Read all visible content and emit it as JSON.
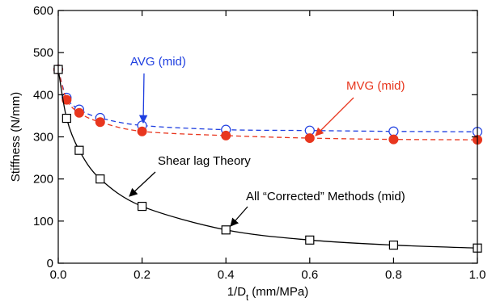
{
  "chart_data": {
    "type": "line",
    "xlabel": "1/D",
    "xlabel_sub": "t",
    "xlabel_unit": " (mm/MPa)",
    "ylabel": "Stiffness (N/mm)",
    "xlim": [
      0.0,
      1.0
    ],
    "ylim": [
      0,
      600
    ],
    "x_ticks": [
      0.0,
      0.2,
      0.4,
      0.6,
      0.8,
      1.0
    ],
    "x_tick_labels": [
      "0.0",
      "0.2",
      "0.4",
      "0.6",
      "0.8",
      "1.0"
    ],
    "y_ticks": [
      0,
      100,
      200,
      300,
      400,
      500,
      600
    ],
    "y_tick_labels": [
      "0",
      "100",
      "200",
      "300",
      "400",
      "500",
      "600"
    ],
    "grid": false,
    "series": [
      {
        "name": "AVG (mid)",
        "color": "#1f3fe0",
        "marker": "open-circle",
        "line": "dashed",
        "x": [
          0.0,
          0.02,
          0.05,
          0.1,
          0.2,
          0.4,
          0.6,
          0.8,
          1.0
        ],
        "y": [
          460,
          393,
          365,
          345,
          327,
          317,
          315,
          313,
          312
        ]
      },
      {
        "name": "MVG (mid)",
        "color": "#e8361e",
        "marker": "filled-circle",
        "line": "dashed",
        "x": [
          0.0,
          0.02,
          0.05,
          0.1,
          0.2,
          0.4,
          0.6,
          0.8,
          1.0
        ],
        "y": [
          460,
          388,
          357,
          335,
          313,
          303,
          297,
          294,
          293
        ]
      },
      {
        "name": "All “Corrected” Methods (mid)",
        "color": "#000000",
        "marker": "open-square",
        "line": "solid",
        "x": [
          0.0,
          0.02,
          0.05,
          0.1,
          0.2,
          0.4,
          0.6,
          0.8,
          1.0
        ],
        "y": [
          460,
          344,
          268,
          200,
          135,
          79,
          55,
          43,
          36
        ]
      }
    ],
    "annotations": [
      {
        "text": "AVG (mid)",
        "color": "#1f3fe0"
      },
      {
        "text": "MVG (mid)",
        "color": "#e8361e"
      },
      {
        "text": "Shear lag Theory",
        "color": "#000000"
      },
      {
        "text": "All “Corrected” Methods (mid)",
        "color": "#000000"
      }
    ]
  }
}
